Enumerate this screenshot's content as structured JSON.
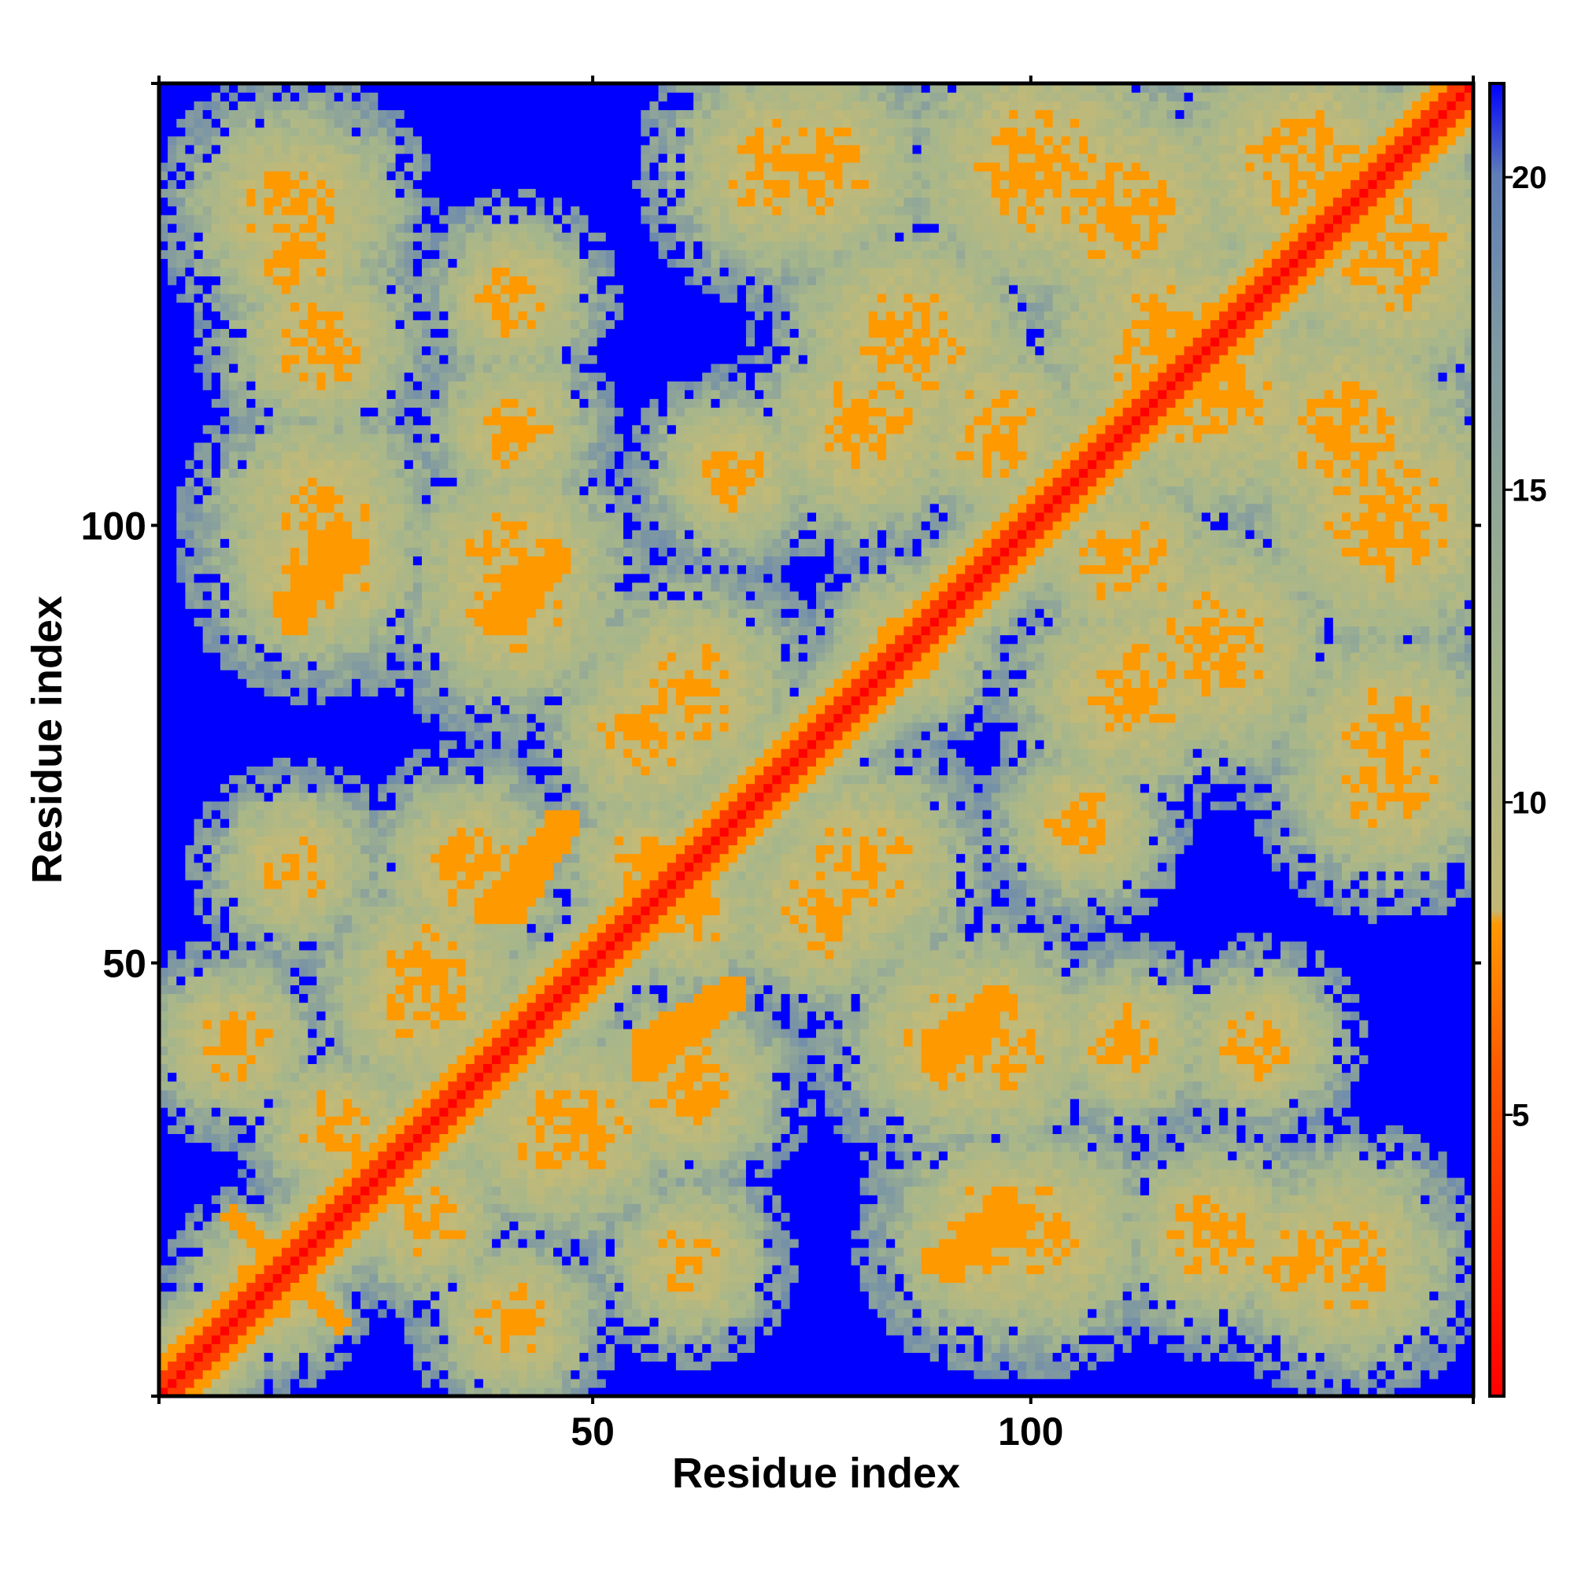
{
  "chart_data": {
    "type": "heatmap",
    "title": "",
    "xlabel": "Residue index",
    "ylabel": "Residue index",
    "n_residues": 150,
    "x_range": [
      1,
      150
    ],
    "y_range": [
      1,
      150
    ],
    "x_ticks": [
      50,
      100
    ],
    "y_ticks": [
      50,
      100
    ],
    "colorbar": {
      "ticks": [
        5,
        10,
        15,
        20
      ],
      "range": [
        0.5,
        21.5
      ],
      "colors": [
        {
          "stop": 0.5,
          "color": "#ff0000"
        },
        {
          "stop": 5.5,
          "color": "#ff4b00"
        },
        {
          "stop": 8.0,
          "color": "#ff9900"
        },
        {
          "stop": 8.1,
          "color": "#c8b870"
        },
        {
          "stop": 12.0,
          "color": "#a0b48c"
        },
        {
          "stop": 20.0,
          "color": "#6482b4"
        },
        {
          "stop": 21.0,
          "color": "#0000ff"
        }
      ]
    },
    "contact_regions": [
      {
        "x": [
          5,
          25
        ],
        "y": [
          5,
          25
        ],
        "note": "N-terminal cross pattern"
      },
      {
        "x": [
          25,
          55
        ],
        "y": [
          60,
          115
        ]
      },
      {
        "x": [
          60,
          75
        ],
        "y": [
          110,
          150
        ]
      },
      {
        "x": [
          95,
          150
        ],
        "y": [
          95,
          150
        ]
      },
      {
        "x": [
          80,
          105
        ],
        "y": [
          5,
          40
        ]
      },
      {
        "x": [
          115,
          150
        ],
        "y": [
          60,
          80
        ]
      }
    ],
    "colors": {
      "background": "#0000ff",
      "diagonal": "#ff0000"
    }
  }
}
